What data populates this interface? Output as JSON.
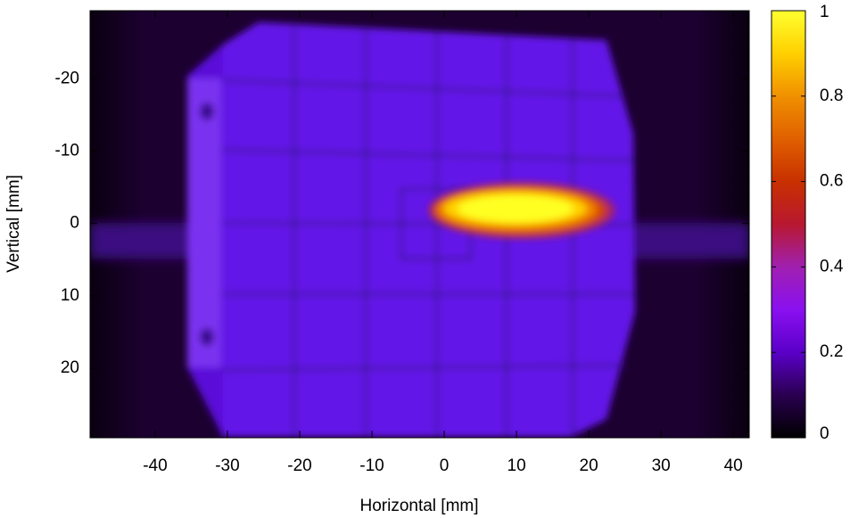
{
  "chart_data": {
    "type": "heatmap",
    "xlabel": "Horizontal [mm]",
    "ylabel": "Vertical [mm]",
    "xlim": [
      -49,
      42.2
    ],
    "xticks": [
      -40,
      -30,
      -20,
      -10,
      0,
      10,
      20,
      30,
      40
    ],
    "ylim": [
      -29.4,
      29.6
    ],
    "yticks": [
      -20,
      -10,
      0,
      10,
      20
    ],
    "y_inverted": true,
    "colorbar": {
      "lim": [
        0,
        1
      ],
      "ticks": [
        0,
        0.2,
        0.4,
        0.6,
        0.8,
        1
      ]
    }
  }
}
